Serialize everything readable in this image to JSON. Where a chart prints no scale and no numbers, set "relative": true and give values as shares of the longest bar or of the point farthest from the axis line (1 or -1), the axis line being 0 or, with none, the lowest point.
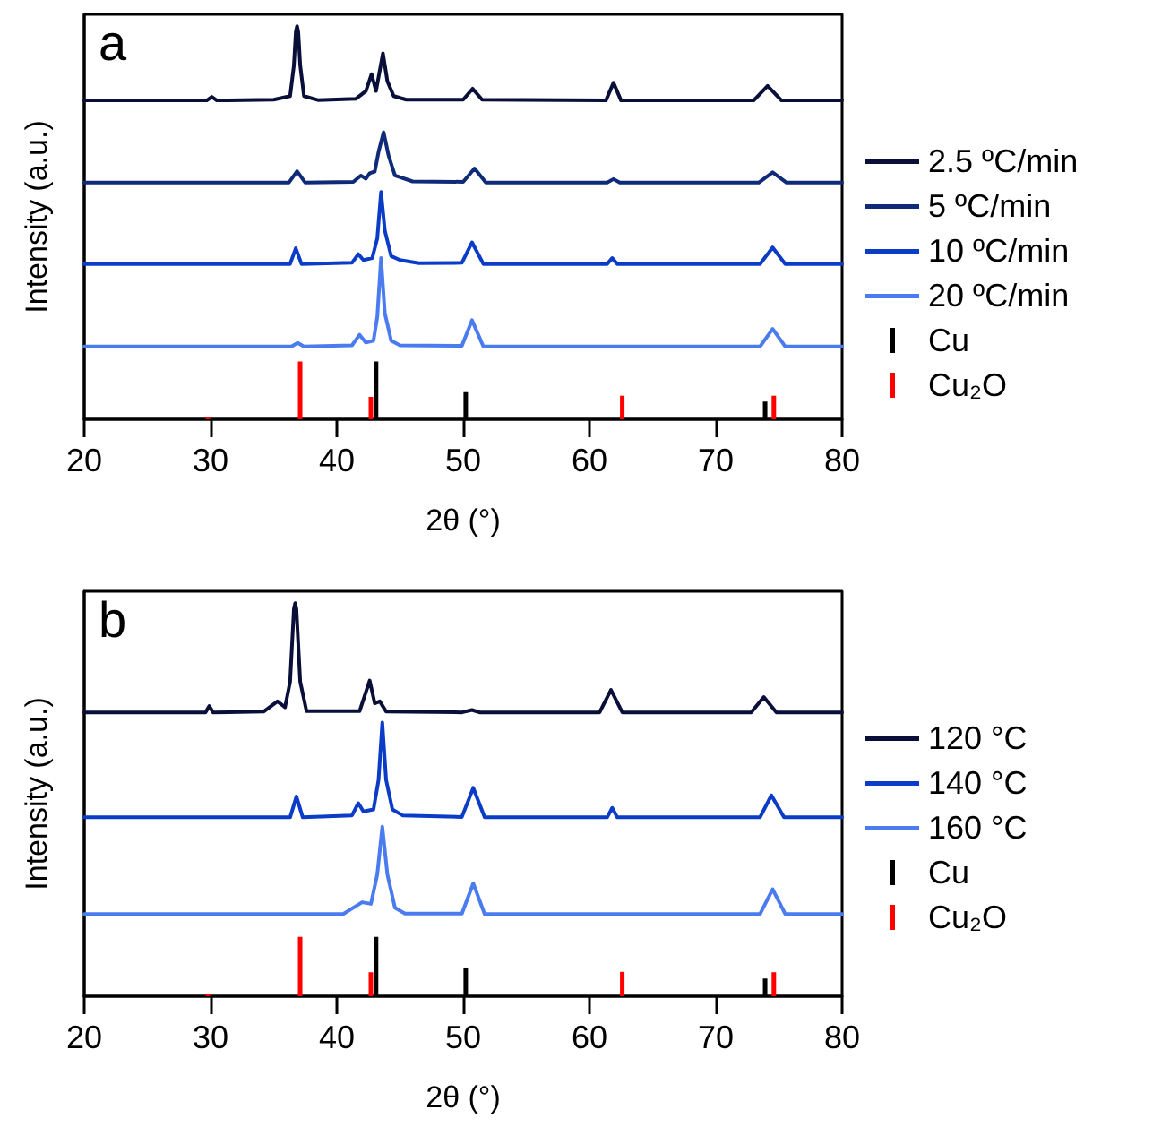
{
  "chart_data": [
    {
      "type": "line",
      "relative": true,
      "xlabel": "2θ (°)",
      "ylabel": "Intensity (a.u.)",
      "annotations": [
        "a"
      ],
      "xlim": [
        20,
        80
      ],
      "xticks": [
        20,
        30,
        40,
        50,
        60,
        70,
        80
      ],
      "legend": "right",
      "marker": "none",
      "grid": false,
      "series": [
        {
          "name": "2.5 ºC/min",
          "color": "#0a0f3a",
          "x": [
            20,
            29.7,
            30.1,
            30.5,
            35.0,
            36.3,
            36.6,
            36.75,
            36.85,
            36.95,
            37.1,
            37.4,
            38.5,
            41.5,
            42.3,
            42.75,
            43.1,
            43.65,
            44.0,
            44.5,
            45.5,
            50.0,
            50.75,
            51.5,
            61.3,
            61.9,
            62.5,
            73.0,
            74.1,
            75.2,
            80
          ],
          "values": [
            0.811,
            0.811,
            0.82,
            0.811,
            0.813,
            0.822,
            0.9,
            0.985,
            1.0,
            0.985,
            0.9,
            0.822,
            0.812,
            0.815,
            0.835,
            0.878,
            0.835,
            0.931,
            0.86,
            0.822,
            0.813,
            0.813,
            0.841,
            0.813,
            0.811,
            0.856,
            0.811,
            0.811,
            0.848,
            0.811,
            0.811
          ]
        },
        {
          "name": "5 ºC/min",
          "color": "#0e2a78",
          "x": [
            20,
            36.2,
            36.85,
            37.5,
            41.3,
            41.9,
            42.3,
            42.6,
            43.0,
            43.3,
            43.7,
            44.1,
            44.6,
            46.0,
            50.0,
            50.9,
            51.8,
            61.4,
            61.9,
            62.4,
            73.4,
            74.5,
            75.6,
            80
          ],
          "values": [
            0.602,
            0.602,
            0.631,
            0.602,
            0.604,
            0.62,
            0.612,
            0.626,
            0.63,
            0.68,
            0.73,
            0.67,
            0.62,
            0.605,
            0.604,
            0.638,
            0.602,
            0.602,
            0.611,
            0.602,
            0.602,
            0.628,
            0.602,
            0.602
          ]
        },
        {
          "name": "10 ºC/min",
          "color": "#0a3cc8",
          "x": [
            20,
            36.3,
            36.75,
            37.2,
            41.2,
            41.7,
            42.1,
            42.8,
            43.2,
            43.5,
            43.8,
            44.3,
            45.0,
            46.5,
            49.9,
            50.7,
            51.6,
            61.4,
            61.8,
            62.2,
            73.5,
            74.5,
            75.5,
            80
          ],
          "values": [
            0.395,
            0.395,
            0.435,
            0.395,
            0.398,
            0.42,
            0.405,
            0.41,
            0.46,
            0.578,
            0.48,
            0.415,
            0.405,
            0.397,
            0.398,
            0.45,
            0.395,
            0.395,
            0.41,
            0.395,
            0.395,
            0.437,
            0.395,
            0.395
          ]
        },
        {
          "name": "20 ºC/min",
          "color": "#4a7cf0",
          "x": [
            20,
            36.4,
            36.9,
            37.4,
            41.2,
            41.8,
            42.3,
            42.9,
            43.2,
            43.5,
            43.8,
            44.3,
            45.0,
            49.9,
            50.7,
            51.6,
            73.5,
            74.5,
            75.5,
            80
          ],
          "values": [
            0.185,
            0.185,
            0.194,
            0.185,
            0.188,
            0.215,
            0.195,
            0.2,
            0.26,
            0.41,
            0.27,
            0.2,
            0.188,
            0.187,
            0.252,
            0.185,
            0.185,
            0.23,
            0.185,
            0.185
          ]
        },
        {
          "name": "Cu",
          "type": "bar",
          "color": "#000000",
          "x": [
            43.3,
            50.4,
            74.1
          ],
          "values": [
            0.147,
            0.069,
            0.045
          ]
        },
        {
          "name": "Cu₂O",
          "type": "bar",
          "color": "#ff0000",
          "x": [
            29.6,
            36.9,
            42.5,
            62.4,
            74.4
          ],
          "values": [
            0.005,
            0.147,
            0.057,
            0.06,
            0.06
          ]
        }
      ]
    },
    {
      "type": "line",
      "relative": true,
      "xlabel": "2θ (°)",
      "ylabel": "Intensity (a.u.)",
      "annotations": [
        "b"
      ],
      "xlim": [
        20,
        80
      ],
      "xticks": [
        20,
        30,
        40,
        50,
        60,
        70,
        80
      ],
      "legend": "right",
      "marker": "none",
      "grid": false,
      "series": [
        {
          "name": "120 °C",
          "color": "#0a0f3a",
          "x": [
            20,
            29.6,
            29.9,
            30.2,
            34.2,
            35.3,
            35.9,
            36.3,
            36.6,
            36.7,
            36.8,
            37.1,
            37.6,
            41.8,
            42.6,
            43.0,
            43.4,
            43.9,
            49.9,
            50.7,
            51.3,
            60.8,
            61.7,
            62.6,
            72.8,
            73.8,
            74.8,
            80
          ],
          "values": [
            0.722,
            0.722,
            0.738,
            0.722,
            0.724,
            0.75,
            0.735,
            0.8,
            0.985,
            1.0,
            0.985,
            0.8,
            0.725,
            0.725,
            0.803,
            0.745,
            0.75,
            0.724,
            0.722,
            0.728,
            0.722,
            0.722,
            0.779,
            0.722,
            0.722,
            0.761,
            0.722,
            0.722
          ]
        },
        {
          "name": "140 °C",
          "color": "#0a3cc8",
          "x": [
            20,
            36.3,
            36.8,
            37.3,
            41.2,
            41.7,
            42.1,
            42.9,
            43.3,
            43.6,
            43.9,
            44.4,
            45.2,
            49.9,
            50.8,
            51.7,
            61.4,
            61.8,
            62.2,
            73.5,
            74.4,
            75.4,
            80
          ],
          "values": [
            0.455,
            0.455,
            0.508,
            0.455,
            0.46,
            0.491,
            0.47,
            0.475,
            0.55,
            0.696,
            0.55,
            0.475,
            0.46,
            0.456,
            0.53,
            0.455,
            0.455,
            0.479,
            0.455,
            0.455,
            0.511,
            0.455,
            0.455
          ]
        },
        {
          "name": "160 °C",
          "color": "#4a7cf0",
          "x": [
            20,
            40.5,
            42.0,
            42.7,
            43.2,
            43.6,
            44.0,
            44.6,
            45.4,
            49.9,
            50.8,
            51.7,
            73.5,
            74.5,
            75.5,
            80
          ],
          "values": [
            0.209,
            0.209,
            0.239,
            0.235,
            0.31,
            0.431,
            0.31,
            0.225,
            0.21,
            0.21,
            0.287,
            0.209,
            0.209,
            0.272,
            0.209,
            0.209
          ]
        },
        {
          "name": "Cu",
          "type": "bar",
          "color": "#000000",
          "x": [
            43.3,
            50.4,
            74.1
          ],
          "values": [
            0.151,
            0.073,
            0.045
          ]
        },
        {
          "name": "Cu₂O",
          "type": "bar",
          "color": "#ff0000",
          "x": [
            29.6,
            36.9,
            42.5,
            62.4,
            74.4
          ],
          "values": [
            0.005,
            0.151,
            0.061,
            0.062,
            0.061
          ]
        }
      ]
    }
  ]
}
